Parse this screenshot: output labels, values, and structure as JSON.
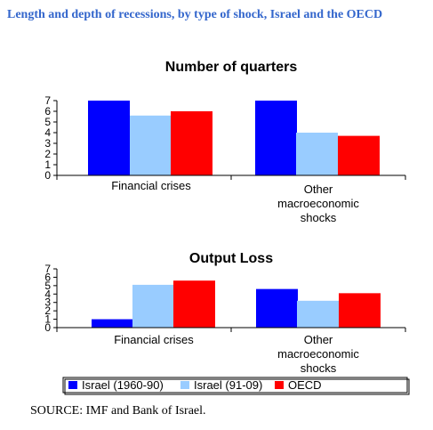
{
  "page": {
    "title": "Length and depth of recessions, by type of shock, Israel and the OECD",
    "source": "SOURCE: IMF and Bank of Israel."
  },
  "legend": {
    "placement": "bottom",
    "items": [
      {
        "label": "Israel (1960-90)",
        "color": "#0000ff"
      },
      {
        "label": "Israel (91-09)",
        "color": "#99ccff"
      },
      {
        "label": "OECD",
        "color": "#ff0000"
      }
    ]
  },
  "chart_data": [
    {
      "type": "bar",
      "title": "Number of quarters",
      "categories": [
        "Financial crises",
        "Other macroeconomic shocks"
      ],
      "series": [
        {
          "name": "Israel (1960-90)",
          "values": [
            7,
            7
          ],
          "color": "#0000ff"
        },
        {
          "name": "Israel (91-09)",
          "values": [
            5.6,
            4.0
          ],
          "color": "#99ccff"
        },
        {
          "name": "OECD",
          "values": [
            6.0,
            3.7
          ],
          "color": "#ff0000"
        }
      ],
      "yticks": [
        "0",
        "1",
        "2",
        "3",
        "4",
        "5",
        "6",
        "7"
      ],
      "ylim": [
        0,
        7
      ],
      "grid": false,
      "legend": "bottom"
    },
    {
      "type": "bar",
      "title": "Output Loss",
      "categories": [
        "Financial crises",
        "Other macroeconomic shocks"
      ],
      "series": [
        {
          "name": "Israel (1960-90)",
          "values": [
            1.0,
            4.6
          ],
          "color": "#0000ff"
        },
        {
          "name": "Israel (91-09)",
          "values": [
            5.1,
            3.2
          ],
          "color": "#99ccff"
        },
        {
          "name": "OECD",
          "values": [
            5.6,
            4.1
          ],
          "color": "#ff0000"
        }
      ],
      "yticks": [
        "0",
        "1",
        "2",
        "3",
        "4",
        "5",
        "6",
        "7"
      ],
      "ylim": [
        0,
        7
      ],
      "grid": false,
      "legend": "bottom"
    }
  ]
}
